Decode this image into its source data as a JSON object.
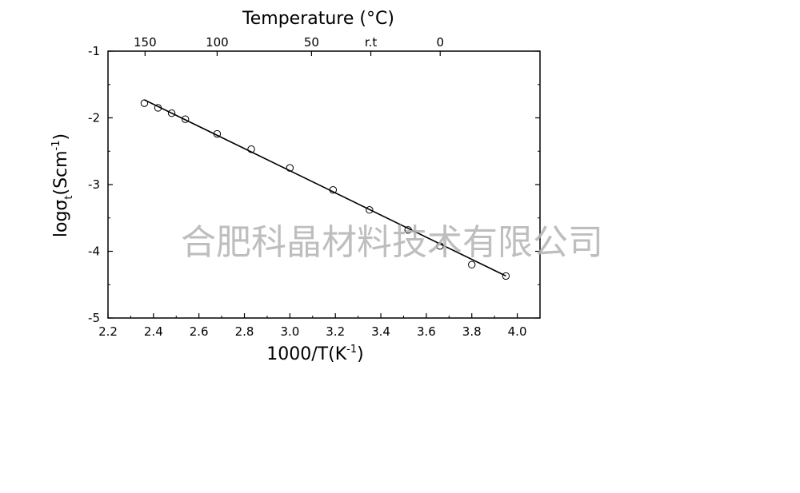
{
  "chart_data": {
    "type": "scatter",
    "x": [
      2.36,
      2.42,
      2.48,
      2.54,
      2.68,
      2.83,
      3.0,
      3.19,
      3.35,
      3.52,
      3.66,
      3.8,
      3.95
    ],
    "y": [
      -1.78,
      -1.85,
      -1.93,
      -2.02,
      -2.24,
      -2.47,
      -2.75,
      -3.08,
      -3.38,
      -3.68,
      -3.92,
      -4.2,
      -4.37
    ],
    "fit_line": {
      "x": [
        2.36,
        3.95
      ],
      "y": [
        -1.73,
        -4.37
      ]
    },
    "xlim": [
      2.2,
      4.1
    ],
    "ylim": [
      -5,
      -1
    ],
    "x_ticks": [
      2.2,
      2.4,
      2.6,
      2.8,
      3.0,
      3.2,
      3.4,
      3.6,
      3.8,
      4.0
    ],
    "x_tick_labels": [
      "2.2",
      "2.4",
      "2.6",
      "2.8",
      "3.0",
      "3.2",
      "3.4",
      "3.6",
      "3.8",
      "4.0"
    ],
    "y_ticks": [
      -5,
      -4,
      -3,
      -2,
      -1
    ],
    "y_tick_labels": [
      "-5",
      "-4",
      "-3",
      "-2",
      "-1"
    ],
    "top_axis": {
      "title": "Temperature (°C)",
      "ticks": [
        {
          "label": "150",
          "x": 2.363
        },
        {
          "label": "100",
          "x": 2.68
        },
        {
          "label": "50",
          "x": 3.095
        },
        {
          "label": "r.t",
          "x": 3.356
        },
        {
          "label": "0",
          "x": 3.661
        }
      ]
    },
    "xlabel": {
      "main": "1000/T(K",
      "sup": "-1",
      "close": ")"
    },
    "ylabel": {
      "main": "logσ",
      "sub": "t",
      "mid": "(Scm",
      "sup": "-1",
      "close": ")"
    },
    "grid": false,
    "marker": "open-circle",
    "colors": {
      "points": "#000000",
      "line": "#000000",
      "axes": "#000000"
    }
  },
  "watermark": "合肥科晶材料技术有限公司"
}
